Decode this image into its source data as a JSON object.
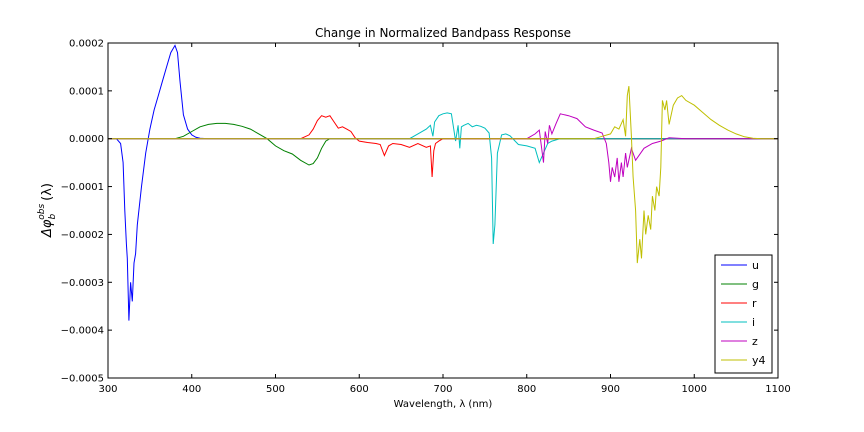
{
  "chart_data": {
    "type": "line",
    "title": "Change in Normalized Bandpass Response",
    "xlabel": "Wavelength, λ (nm)",
    "ylabel_main": "Δφ",
    "ylabel_sup": "obs",
    "ylabel_sub": "b",
    "ylabel_tail": "(λ)",
    "xlim": [
      300,
      1100
    ],
    "ylim": [
      -0.0005,
      0.0002
    ],
    "xticks": [
      300,
      400,
      500,
      600,
      700,
      800,
      900,
      1000,
      1100
    ],
    "xtick_labels": [
      "300",
      "400",
      "500",
      "600",
      "700",
      "800",
      "900",
      "1000",
      "1100"
    ],
    "yticks": [
      -0.0005,
      -0.0004,
      -0.0003,
      -0.0002,
      -0.0001,
      0.0,
      0.0001,
      0.0002
    ],
    "ytick_labels": [
      "−0.0005",
      "−0.0004",
      "−0.0003",
      "−0.0002",
      "−0.0001",
      "0.0000",
      "0.0001",
      "0.0002"
    ],
    "legend_position": "lower-right",
    "colors": {
      "u": "#0000ff",
      "g": "#008000",
      "r": "#ff0000",
      "i": "#00bfbf",
      "z": "#bf00bf",
      "y4": "#bfbf00"
    },
    "series": [
      {
        "name": "u",
        "x": [
          300,
          310,
          315,
          318,
          320,
          322,
          323,
          325,
          327,
          329,
          331,
          333,
          335,
          340,
          345,
          350,
          355,
          360,
          365,
          370,
          375,
          380,
          383,
          386,
          390,
          395,
          400,
          405,
          410,
          420,
          1100
        ],
        "y": [
          0,
          0,
          -1e-05,
          -5e-05,
          -0.00015,
          -0.00022,
          -0.00025,
          -0.00038,
          -0.0003,
          -0.00034,
          -0.00026,
          -0.00024,
          -0.00018,
          -0.0001,
          -3e-05,
          2e-05,
          6e-05,
          9e-05,
          0.00012,
          0.00015,
          0.00018,
          0.000195,
          0.00018,
          0.00012,
          5e-05,
          2e-05,
          8e-06,
          3e-06,
          1e-06,
          0,
          0
        ]
      },
      {
        "name": "g",
        "x": [
          300,
          380,
          390,
          400,
          410,
          420,
          430,
          440,
          450,
          460,
          470,
          480,
          490,
          500,
          510,
          520,
          530,
          540,
          545,
          550,
          555,
          560,
          565,
          570,
          1100
        ],
        "y": [
          0,
          0,
          5e-06,
          1.5e-05,
          2.5e-05,
          3e-05,
          3.2e-05,
          3.2e-05,
          3e-05,
          2.6e-05,
          2e-05,
          1e-05,
          0.0,
          -1.5e-05,
          -2.5e-05,
          -3.2e-05,
          -4.5e-05,
          -5.5e-05,
          -5.2e-05,
          -4e-05,
          -2e-05,
          -5e-06,
          0,
          0,
          0
        ]
      },
      {
        "name": "r",
        "x": [
          300,
          530,
          540,
          545,
          550,
          555,
          560,
          565,
          570,
          575,
          580,
          585,
          590,
          595,
          600,
          610,
          620,
          625,
          630,
          635,
          640,
          650,
          660,
          670,
          680,
          685,
          687,
          689,
          691,
          695,
          700,
          1100
        ],
        "y": [
          0,
          0,
          8e-06,
          2e-05,
          3.8e-05,
          4.8e-05,
          4.5e-05,
          4.8e-05,
          3.5e-05,
          2.2e-05,
          2.5e-05,
          2e-05,
          1.5e-05,
          2e-06,
          -5e-06,
          -8e-06,
          -1e-05,
          -1.2e-05,
          -3.5e-05,
          -1.5e-05,
          -1e-05,
          -1.2e-05,
          -1.8e-05,
          -1e-05,
          -1.8e-05,
          -1.5e-05,
          -8e-05,
          -2.5e-05,
          -1e-05,
          -5e-06,
          0,
          0
        ]
      },
      {
        "name": "i",
        "x": [
          300,
          660,
          670,
          680,
          685,
          688,
          690,
          695,
          700,
          705,
          710,
          715,
          718,
          720,
          722,
          725,
          730,
          735,
          740,
          745,
          750,
          755,
          758,
          760,
          762,
          765,
          770,
          775,
          780,
          790,
          800,
          810,
          815,
          820,
          825,
          830,
          840,
          1100
        ],
        "y": [
          0,
          0,
          1e-05,
          2e-05,
          2.8e-05,
          5e-06,
          3.5e-05,
          4.8e-05,
          5.2e-05,
          5.4e-05,
          5.2e-05,
          -5e-06,
          2.8e-05,
          -2e-05,
          2.5e-05,
          2.8e-05,
          3.2e-05,
          2.5e-05,
          2.8e-05,
          2.6e-05,
          2.2e-05,
          1.2e-05,
          -4e-05,
          -0.00022,
          -0.00018,
          -3e-05,
          8e-06,
          1e-05,
          6e-06,
          -1.2e-05,
          -1.5e-05,
          -2e-05,
          -5e-05,
          -3e-05,
          -1e-05,
          -5e-06,
          0,
          0
        ]
      },
      {
        "name": "z",
        "x": [
          300,
          800,
          810,
          815,
          820,
          822,
          825,
          827,
          830,
          835,
          840,
          845,
          850,
          860,
          870,
          880,
          890,
          895,
          898,
          900,
          902,
          905,
          908,
          910,
          913,
          915,
          918,
          920,
          925,
          930,
          940,
          950,
          960,
          970,
          980,
          990,
          1000,
          1100
        ],
        "y": [
          0,
          0,
          1e-05,
          1.8e-05,
          -5e-05,
          1.5e-05,
          -1e-05,
          2.8e-05,
          1e-05,
          3.2e-05,
          5.2e-05,
          5e-05,
          4.8e-05,
          4.2e-05,
          2.5e-05,
          1.8e-05,
          1.2e-05,
          -1e-05,
          -5e-05,
          -9e-05,
          -6e-05,
          -8e-05,
          -4e-05,
          -9e-05,
          -5e-05,
          -8e-05,
          -3e-05,
          -6e-05,
          -2e-05,
          -4.5e-05,
          -2e-05,
          -1e-05,
          -5e-06,
          2e-06,
          1e-06,
          0,
          0,
          0
        ]
      },
      {
        "name": "y4",
        "x": [
          300,
          880,
          890,
          900,
          905,
          910,
          915,
          918,
          920,
          922,
          925,
          927,
          930,
          932,
          935,
          937,
          940,
          942,
          945,
          948,
          950,
          953,
          955,
          958,
          960,
          962,
          965,
          967,
          970,
          975,
          980,
          985,
          990,
          1000,
          1010,
          1020,
          1030,
          1040,
          1050,
          1060,
          1070,
          1080,
          1100
        ],
        "y": [
          0,
          0,
          5e-06,
          1e-05,
          2.5e-05,
          2e-05,
          4e-05,
          5e-06,
          9e-05,
          0.00011,
          5e-06,
          -8e-05,
          -0.00015,
          -0.00026,
          -0.00021,
          -0.00025,
          -0.00015,
          -0.0002,
          -0.00016,
          -0.00019,
          -0.00012,
          -0.00015,
          -0.0001,
          -0.00012,
          -6e-05,
          8e-05,
          6e-05,
          8e-05,
          3e-05,
          7e-05,
          8.5e-05,
          9e-05,
          8e-05,
          7e-05,
          5.5e-05,
          4e-05,
          2.8e-05,
          1.8e-05,
          1e-05,
          4e-06,
          1e-06,
          0,
          0
        ]
      }
    ]
  }
}
